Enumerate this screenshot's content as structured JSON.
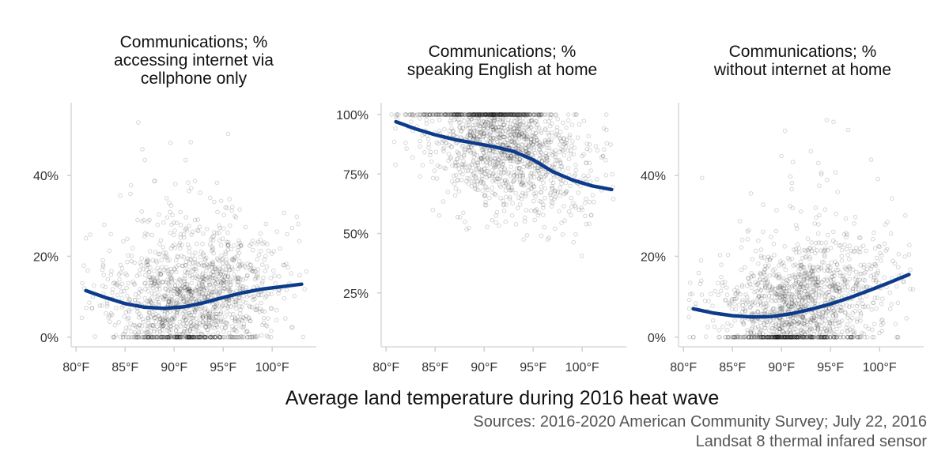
{
  "chart_data": [
    {
      "type": "scatter",
      "title": "Communications; %\naccessing internet via\ncellphone only",
      "x_ticks": [
        "80°F",
        "85°F",
        "90°F",
        "95°F",
        "100°F"
      ],
      "x_tick_values": [
        80,
        85,
        90,
        95,
        100
      ],
      "y_ticks": [
        "0%",
        "20%",
        "40%"
      ],
      "y_tick_values": [
        0,
        20,
        40
      ],
      "xlim": [
        79.5,
        104.5
      ],
      "ylim": [
        -2,
        58
      ],
      "grid": false,
      "point_color": "#000000",
      "point_count_approx": 1500,
      "scatter_x_range": [
        80.5,
        103.5
      ],
      "scatter_y_range": [
        0,
        56
      ],
      "trend": {
        "name": "",
        "color": "#0d3b8c",
        "x": [
          81,
          83,
          85,
          87,
          89,
          91,
          93,
          95,
          97,
          99,
          101,
          103
        ],
        "y": [
          11.5,
          9.8,
          8.3,
          7.4,
          7.1,
          7.5,
          8.5,
          9.8,
          11.0,
          11.9,
          12.5,
          13.1
        ]
      }
    },
    {
      "type": "scatter",
      "title": "Communications; %\nspeaking English at home",
      "x_ticks": [
        "80°F",
        "85°F",
        "90°F",
        "95°F",
        "100°F"
      ],
      "x_tick_values": [
        80,
        85,
        90,
        95,
        100
      ],
      "y_ticks": [
        "25%",
        "50%",
        "75%",
        "100%"
      ],
      "y_tick_values": [
        25,
        50,
        75,
        100
      ],
      "xlim": [
        79.5,
        104.5
      ],
      "ylim": [
        3,
        105
      ],
      "grid": false,
      "point_color": "#000000",
      "point_count_approx": 1500,
      "scatter_x_range": [
        80.5,
        103.5
      ],
      "scatter_y_range": [
        5,
        100
      ],
      "trend": {
        "name": "",
        "color": "#0d3b8c",
        "x": [
          81,
          83,
          85,
          87,
          89,
          91,
          93,
          95,
          97,
          99,
          101,
          103
        ],
        "y": [
          97,
          94,
          91.5,
          89.5,
          88,
          86.5,
          84.5,
          81,
          76,
          72.5,
          70,
          68.5
        ]
      }
    },
    {
      "type": "scatter",
      "title": "Communications; %\nwithout internet at home",
      "x_ticks": [
        "80°F",
        "85°F",
        "90°F",
        "95°F",
        "100°F"
      ],
      "x_tick_values": [
        80,
        85,
        90,
        95,
        100
      ],
      "y_ticks": [
        "0%",
        "20%",
        "40%"
      ],
      "y_tick_values": [
        0,
        20,
        40
      ],
      "xlim": [
        79.5,
        104.5
      ],
      "ylim": [
        -2,
        58
      ],
      "grid": false,
      "point_color": "#000000",
      "point_count_approx": 1500,
      "scatter_x_range": [
        80.5,
        103.5
      ],
      "scatter_y_range": [
        0,
        56
      ],
      "trend": {
        "name": "",
        "color": "#0d3b8c",
        "x": [
          81,
          83,
          85,
          87,
          89,
          91,
          93,
          95,
          97,
          99,
          101,
          103
        ],
        "y": [
          7.0,
          6.0,
          5.3,
          5.0,
          5.1,
          5.8,
          6.9,
          8.2,
          9.8,
          11.6,
          13.5,
          15.5
        ]
      }
    }
  ],
  "xlabel": "Average land temperature during 2016 heat wave",
  "caption": [
    "Sources: 2016-2020 American Community Survey; July 22, 2016",
    "Landsat 8 thermal infared sensor"
  ]
}
